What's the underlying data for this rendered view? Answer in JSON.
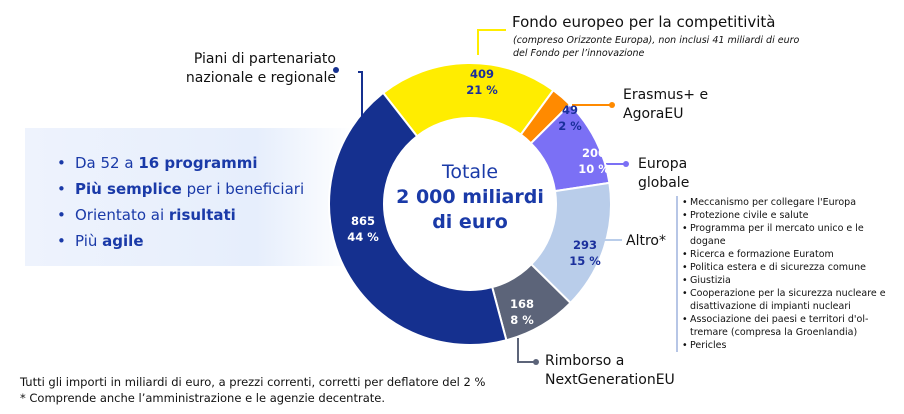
{
  "bullets": [
    {
      "pre": "Da 52 a ",
      "bold": "16 programmi",
      "post": ""
    },
    {
      "pre": "",
      "bold": "Più semplice",
      "post": " per i beneficiari"
    },
    {
      "pre": "Orientato ai ",
      "bold": "risultati",
      "post": ""
    },
    {
      "pre": "Più ",
      "bold": "agile",
      "post": ""
    }
  ],
  "center": {
    "line1": "Totale",
    "line2": "2 000 miliardi",
    "line3": "di euro"
  },
  "labels": {
    "piani": "Piani di partenariato nazionale e regionale",
    "fondo": "Fondo europeo per la competitività",
    "fondo_note": "(compreso Orizzonte Europa), non inclusi 41 miliardi di euro del Fondo per l’innovazione",
    "erasmus": "Erasmus+ e AgoraEU",
    "europa": "Europa globale",
    "altro": "Altro*",
    "rimborso": "Rimborso a NextGenerationEU"
  },
  "altro_items": [
    "Meccanismo per collegare l'Europa",
    "Protezione civile e salute",
    "Programma per il mercato unico e le dogane",
    "Ricerca e formazione Euratom",
    "Politica estera e di sicurezza comune",
    "Giustizia",
    "Cooperazione per la sicurezza nucleare e disattivazione di impianti nucleari",
    "Associazione dei paesi e territori d'ol-tremare (compresa la Groenlandia)",
    "Pericles"
  ],
  "footnotes": [
    "Tutti gli importi in miliardi di euro, a prezzi correnti, corretti per deflatore del 2 %",
    "* Comprende anche l’amministrazione e le agenzie decentrate."
  ],
  "chart_data": {
    "type": "pie",
    "title": "Totale 2 000 miliardi di euro",
    "segments": [
      {
        "name": "Fondo europeo per la competitività",
        "value": 409,
        "pct": "21 %",
        "color": "#ffed00"
      },
      {
        "name": "Erasmus+ e AgoraEU",
        "value": 49,
        "pct": "2 %",
        "color": "#ff8a00"
      },
      {
        "name": "Europa globale",
        "value": 200,
        "pct": "10 %",
        "color": "#7b70f5"
      },
      {
        "name": "Altro*",
        "value": 293,
        "pct": "15 %",
        "color": "#b9cdea"
      },
      {
        "name": "Rimborso a NextGenerationEU",
        "value": 168,
        "pct": "8 %",
        "color": "#5c6479"
      },
      {
        "name": "Piani di partenariato nazionale e regionale",
        "value": 865,
        "pct": "44 %",
        "color": "#15308f"
      }
    ]
  }
}
